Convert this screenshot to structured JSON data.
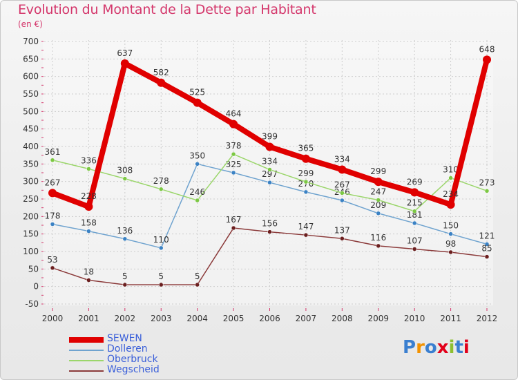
{
  "title": "Evolution du Montant de la Dette par Habitant",
  "subtitle": "(en €)",
  "logo_text": "Proxiti",
  "colors": {
    "background": "#f2f2f2",
    "title": "#d4366b",
    "grid": "#cccccc",
    "axis_text": "#333333",
    "legend_text": "#3a5fd9"
  },
  "chart_data": {
    "type": "line",
    "x": [
      "2000",
      "2001",
      "2002",
      "2003",
      "2004",
      "2005",
      "2006",
      "2007",
      "2008",
      "2009",
      "2010",
      "2011",
      "2012"
    ],
    "ylim": [
      -50,
      700
    ],
    "yticks": [
      -50,
      0,
      50,
      100,
      150,
      200,
      250,
      300,
      350,
      400,
      450,
      500,
      550,
      600,
      650,
      700
    ],
    "grid": true,
    "legend_position": "bottom-left",
    "series": [
      {
        "name": "SEWEN",
        "color": "#e00000",
        "width": 8,
        "marker": 6,
        "values": [
          267,
          228,
          637,
          582,
          525,
          464,
          399,
          365,
          334,
          299,
          269,
          234,
          648
        ]
      },
      {
        "name": "Dolleren",
        "color": "#6fa3cf",
        "width": 1.5,
        "marker": 3,
        "marker_color": "#3b82c4",
        "values": [
          178,
          158,
          136,
          110,
          350,
          325,
          297,
          270,
          246,
          209,
          181,
          150,
          121
        ]
      },
      {
        "name": "Oberbruck",
        "color": "#9bd66b",
        "width": 1.5,
        "marker": 3,
        "marker_color": "#7cc843",
        "values": [
          361,
          336,
          308,
          278,
          246,
          378,
          334,
          299,
          267,
          247,
          215,
          310,
          273
        ]
      },
      {
        "name": "Wegscheid",
        "color": "#8b3a3a",
        "width": 1.5,
        "marker": 3,
        "marker_color": "#6b1f1f",
        "values": [
          53,
          18,
          5,
          5,
          5,
          167,
          156,
          147,
          137,
          116,
          107,
          98,
          85
        ]
      }
    ]
  }
}
